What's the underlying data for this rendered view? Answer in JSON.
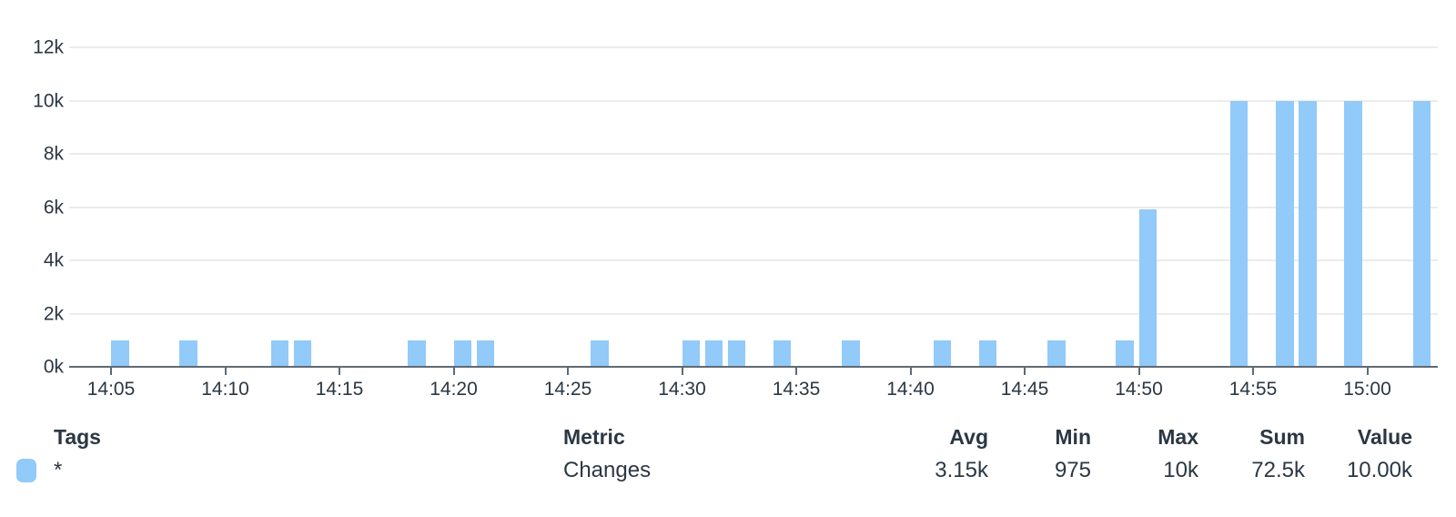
{
  "chart_data": {
    "type": "bar",
    "title": "",
    "xlabel": "",
    "ylabel": "",
    "x_domain": [
      "14:03",
      "15:03"
    ],
    "ylim": [
      0,
      12000
    ],
    "grid": true,
    "legend_position": "bottom-table",
    "yticks": [
      {
        "label": "0k",
        "v": 0
      },
      {
        "label": "2k",
        "v": 2000
      },
      {
        "label": "4k",
        "v": 4000
      },
      {
        "label": "6k",
        "v": 6000
      },
      {
        "label": "8k",
        "v": 8000
      },
      {
        "label": "10k",
        "v": 10000
      },
      {
        "label": "12k",
        "v": 12000
      }
    ],
    "xticks": [
      "14:05",
      "14:10",
      "14:15",
      "14:20",
      "14:25",
      "14:30",
      "14:35",
      "14:40",
      "14:45",
      "14:50",
      "14:55",
      "15:00"
    ],
    "series": [
      {
        "name": "Changes",
        "tags": "*",
        "color": "#92caf9",
        "bucket_minutes": 1,
        "points": [
          {
            "t": "14:05",
            "v": 975
          },
          {
            "t": "14:08",
            "v": 975
          },
          {
            "t": "14:12",
            "v": 975
          },
          {
            "t": "14:13",
            "v": 975
          },
          {
            "t": "14:18",
            "v": 975
          },
          {
            "t": "14:20",
            "v": 975
          },
          {
            "t": "14:21",
            "v": 975
          },
          {
            "t": "14:26",
            "v": 975
          },
          {
            "t": "14:30",
            "v": 975
          },
          {
            "t": "14:31",
            "v": 975
          },
          {
            "t": "14:32",
            "v": 975
          },
          {
            "t": "14:34",
            "v": 975
          },
          {
            "t": "14:37",
            "v": 975
          },
          {
            "t": "14:41",
            "v": 975
          },
          {
            "t": "14:43",
            "v": 975
          },
          {
            "t": "14:46",
            "v": 975
          },
          {
            "t": "14:49",
            "v": 975
          },
          {
            "t": "14:50",
            "v": 5925
          },
          {
            "t": "14:54",
            "v": 10000
          },
          {
            "t": "14:56",
            "v": 10000
          },
          {
            "t": "14:57",
            "v": 10000
          },
          {
            "t": "14:59",
            "v": 10000
          },
          {
            "t": "15:02",
            "v": 10000
          }
        ]
      }
    ]
  },
  "legend": {
    "headers": {
      "tags": "Tags",
      "metric": "Metric",
      "avg": "Avg",
      "min": "Min",
      "max": "Max",
      "sum": "Sum",
      "value": "Value"
    },
    "rows": [
      {
        "swatch_color": "#92caf9",
        "tags": "*",
        "metric": "Changes",
        "avg": "3.15k",
        "min": "975",
        "max": "10k",
        "sum": "72.5k",
        "value": "10.00k"
      }
    ]
  },
  "colors": {
    "bar": "#92caf9",
    "grid": "#ececec",
    "axis_line": "#5f6a74",
    "text": "#2b3743",
    "background": "#ffffff"
  }
}
